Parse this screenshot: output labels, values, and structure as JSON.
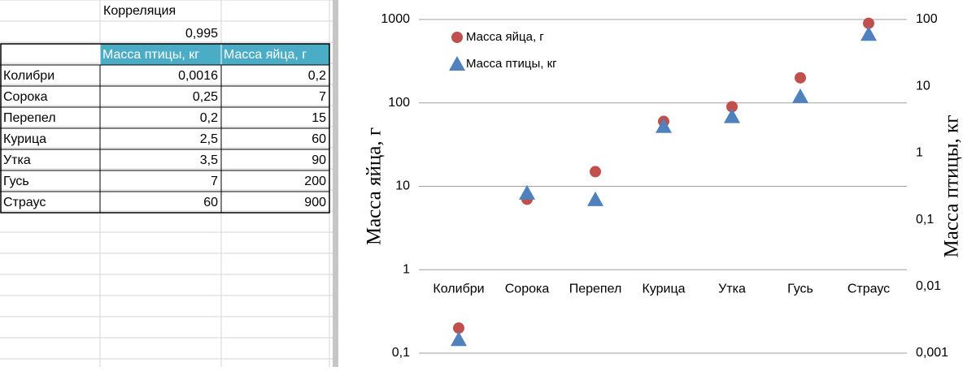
{
  "sheet": {
    "title": "Корреляция",
    "value": "0,995",
    "headers": [
      "Масса птицы, кг",
      "Масса яйца, г"
    ],
    "rows": [
      [
        "Колибри",
        "0,0016",
        "0,2"
      ],
      [
        "Сорока",
        "0,25",
        "7"
      ],
      [
        "Перепел",
        "0,2",
        "15"
      ],
      [
        "Курица",
        "2,5",
        "60"
      ],
      [
        "Утка",
        "3,5",
        "90"
      ],
      [
        "Гусь",
        "7",
        "200"
      ],
      [
        "Страус",
        "60",
        "900"
      ]
    ]
  },
  "chart_data": {
    "type": "scatter",
    "categories": [
      "Колибри",
      "Сорока",
      "Перепел",
      "Курица",
      "Утка",
      "Гусь",
      "Страус"
    ],
    "ylabel": "Масса яйца, г",
    "y2label": "Масса птицы, кг",
    "ylog": true,
    "y2log": true,
    "grid": true,
    "legend": "top-left",
    "xaxis_cross": 1,
    "ylim": [
      0.1,
      1000
    ],
    "yticks": [
      {
        "value": 0.1,
        "label": "0,1"
      },
      1,
      10,
      100,
      1000
    ],
    "y2lim": [
      0.001,
      100
    ],
    "y2ticks": [
      {
        "value": 0.001,
        "label": "0,001"
      },
      {
        "value": 0.01,
        "label": "0,01"
      },
      {
        "value": 0.1,
        "label": "0,1"
      },
      1,
      10,
      100
    ],
    "series": [
      {
        "name": "Масса яйца, г",
        "color": "#c0504d",
        "marker": "circle",
        "values": [
          0.2,
          7,
          15,
          60,
          90,
          200,
          900
        ]
      },
      {
        "name": "Масса птицы, кг",
        "color": "#4f81bd",
        "marker": "triangle",
        "axis": "y2",
        "values": [
          0.0016,
          0.25,
          0.2,
          2.5,
          3.5,
          7,
          60
        ]
      }
    ]
  }
}
